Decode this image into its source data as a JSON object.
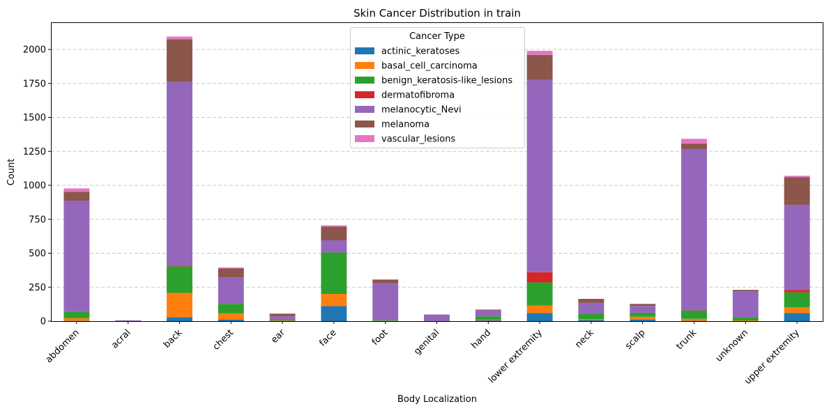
{
  "chart_data": {
    "type": "bar",
    "stacked": true,
    "title": "Skin Cancer Distribution in train",
    "xlabel": "Body Localization",
    "ylabel": "Count",
    "ylim": [
      0,
      2200
    ],
    "yticks": [
      0,
      250,
      500,
      750,
      1000,
      1250,
      1500,
      1750,
      2000
    ],
    "ytick_labels": [
      "0",
      "250",
      "500",
      "750",
      "1000",
      "1250",
      "1500",
      "1750",
      "2000"
    ],
    "grid": "y-dashed",
    "legend": {
      "title": "Cancer Type",
      "position": "top-center"
    },
    "categories": [
      "abdomen",
      "acral",
      "back",
      "chest",
      "ear",
      "face",
      "foot",
      "genital",
      "hand",
      "lower extremity",
      "neck",
      "scalp",
      "trunk",
      "unknown",
      "upper extremity"
    ],
    "series": [
      {
        "name": "actinic_keratoses",
        "color": "#1f77b4",
        "values": [
          2,
          0,
          28,
          12,
          2,
          110,
          1,
          0,
          6,
          60,
          8,
          12,
          2,
          0,
          60
        ]
      },
      {
        "name": "basal_cell_carcinoma",
        "color": "#ff7f0e",
        "values": [
          20,
          0,
          180,
          45,
          3,
          90,
          1,
          0,
          4,
          55,
          6,
          20,
          15,
          5,
          42
        ]
      },
      {
        "name": "benign_keratosis-like_lesions",
        "color": "#2ca02c",
        "values": [
          45,
          0,
          195,
          70,
          5,
          305,
          5,
          0,
          25,
          170,
          40,
          30,
          60,
          25,
          110
        ]
      },
      {
        "name": "dermatofibroma",
        "color": "#d62728",
        "values": [
          0,
          0,
          2,
          0,
          0,
          0,
          0,
          0,
          0,
          75,
          0,
          0,
          2,
          0,
          18
        ]
      },
      {
        "name": "melanocytic_Nevi",
        "color": "#9467bd",
        "values": [
          820,
          6,
          1355,
          195,
          25,
          90,
          273,
          48,
          45,
          1415,
          80,
          50,
          1188,
          190,
          625
        ]
      },
      {
        "name": "melanoma",
        "color": "#8c564b",
        "values": [
          65,
          0,
          315,
          65,
          20,
          100,
          25,
          1,
          5,
          185,
          30,
          15,
          40,
          10,
          205
        ]
      },
      {
        "name": "vascular_lesions",
        "color": "#e377c2",
        "values": [
          25,
          0,
          20,
          8,
          0,
          10,
          2,
          0,
          0,
          30,
          0,
          0,
          35,
          0,
          10
        ]
      }
    ]
  }
}
